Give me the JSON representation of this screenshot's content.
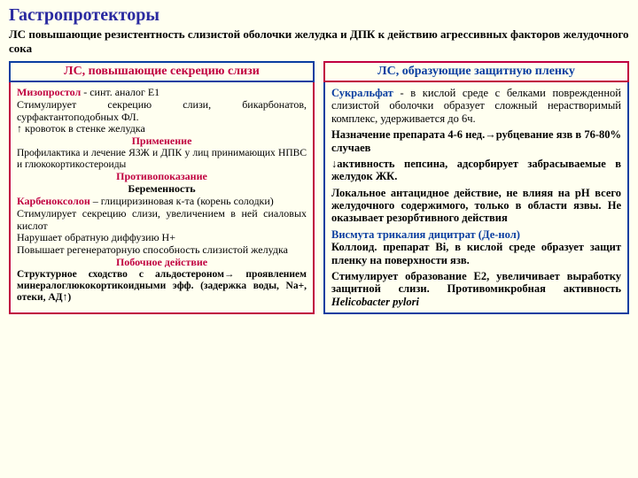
{
  "title": {
    "text": "Гастропротекторы",
    "fontsize": 20,
    "color": "#2a2aa0"
  },
  "subtitle": {
    "text": "ЛС повышающие резистентность слизистой оболочки желудка и ДПК к действию агрессивных факторов желудочного сока",
    "fontsize": 13
  },
  "left": {
    "header": {
      "text": "ЛС, повышающие секрецию слизи",
      "color": "#c00040",
      "border": "#0a3ea0",
      "fontsize": 14
    },
    "body": {
      "border": "#c00040",
      "fontsize": 12,
      "miso_name": "Мизопростол",
      "miso_name_color": "#c00040",
      "miso_a": " - синт. аналог Е1",
      "miso_b": "Стимулирует секрецию слизи, бикарбонатов, сурфактантоподобных ФЛ.",
      "miso_c": "↑ кровоток в стенке желудка",
      "sec_app": "Применение",
      "sec_color": "#c00040",
      "miso_app": "Профилактика и лечение ЯЗЖ и ДПК у лиц принимающих НПВС и глюкокортикостероиды",
      "sec_contra": "Противопоказание",
      "contra": "Беременность",
      "karb_name": "Карбеноксолон",
      "karb_a": " – глициризиновая к-та (корень солодки)",
      "karb_b": "Стимулирует секрецию слизи, увеличением в ней сиаловых кислот",
      "karb_c": "Нарушает обратную диффузию Н+",
      "karb_d": "Повышает регенераторную способность слизистой желудка",
      "sec_side": "Побочное действие",
      "karb_side": "Структурное сходство с альдостероном→ проявлением минералоглюкокортикоидными эфф. (задержка воды, Na+, отеки, АД↑)"
    }
  },
  "right": {
    "header": {
      "text": "ЛС, образующие защитную пленку",
      "color": "#0a3ea0",
      "border": "#c00040",
      "fontsize": 14
    },
    "body": {
      "border": "#0a3ea0",
      "fontsize": 12.5,
      "suc_name": "Сукральфат",
      "name_color": "#0a3ea0",
      "suc_a": " - в кислой среде с белками поврежденной слизистой оболочки образует сложный нерастворимый комплекс, удерживается до 6ч.",
      "suc_b": "Назначение препарата 4-6 нед.→рубцевание язв в 76-80% случаев",
      "suc_c": "↓активность пепсина, адсорбирует забрасываемые в желудок ЖК.",
      "suc_d": "Локальное антацидное действие, не влияя на рН всего желудочного содержимого, только в области язвы. Не оказывает резорбтивного действия",
      "bi_name": "Висмута трикалия дицитрат (Де-нол)",
      "bi_a": "Коллоид. препарат Bi, в кислой среде образует защит пленку на поверхности язв.",
      "bi_b_1": "Стимулирует образование Е2, увеличивает выработку защитной слизи. Противомикробная активность ",
      "bi_b_2": "Helicobacter pylori"
    }
  }
}
